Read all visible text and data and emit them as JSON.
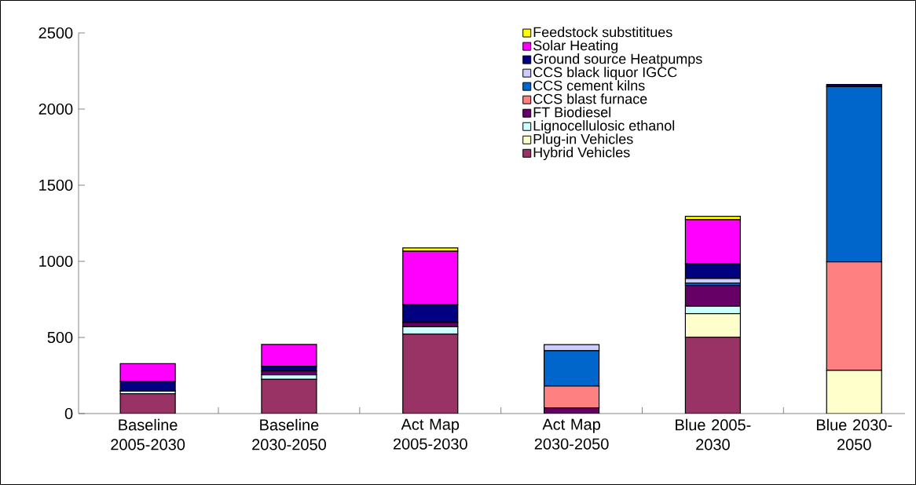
{
  "chart_data": {
    "type": "bar",
    "stacked": true,
    "categories": [
      "Baseline 2005-2030",
      "Baseline 2030-2050",
      "Act Map 2005-2030",
      "Act Map 2030-2050",
      "Blue 2005-2030",
      "Blue 2030-2050"
    ],
    "series": [
      {
        "name": "Hybrid Vehicles",
        "color": "#993366",
        "values": [
          130,
          225,
          522,
          0,
          502,
          0
        ]
      },
      {
        "name": "Plug-in Vehicles",
        "color": "#ffffcc",
        "values": [
          0,
          0,
          0,
          0,
          155,
          284
        ]
      },
      {
        "name": "Lignocellulosic ethanol",
        "color": "#ccffff",
        "values": [
          17,
          29,
          48,
          0,
          48,
          0
        ]
      },
      {
        "name": "FT Biodiesel",
        "color": "#660066",
        "values": [
          5,
          26,
          29,
          38,
          137,
          0
        ]
      },
      {
        "name": "CCS blast furnace",
        "color": "#ff8080",
        "values": [
          0,
          0,
          0,
          143,
          0,
          713
        ]
      },
      {
        "name": "CCS cement kilns",
        "color": "#0066cc",
        "values": [
          0,
          0,
          0,
          232,
          15,
          1150
        ]
      },
      {
        "name": "CCS black liquor IGCC",
        "color": "#ccccff",
        "values": [
          0,
          0,
          0,
          40,
          30,
          0
        ]
      },
      {
        "name": "Ground source Heatpumps",
        "color": "#000080",
        "values": [
          60,
          31,
          117,
          0,
          97,
          15
        ]
      },
      {
        "name": "Solar Heating",
        "color": "#ff00ff",
        "values": [
          116,
          143,
          350,
          0,
          290,
          0
        ]
      },
      {
        "name": "Feedstock substititues",
        "color": "#ffff00",
        "values": [
          0,
          0,
          22,
          0,
          22,
          0
        ]
      }
    ],
    "ylim": [
      0,
      2500
    ],
    "yticks": [
      0,
      500,
      1000,
      1500,
      2000,
      2500
    ],
    "grid": false,
    "legend": "top right"
  }
}
